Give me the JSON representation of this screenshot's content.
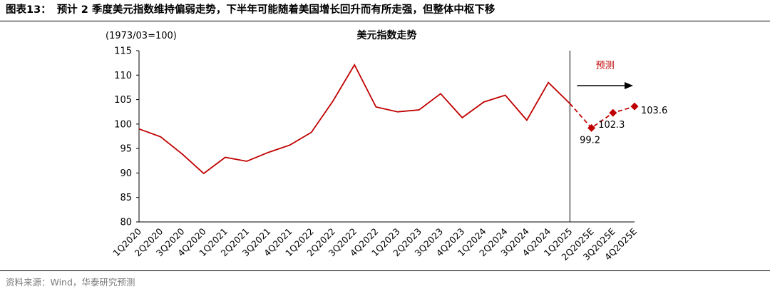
{
  "header": {
    "figure_label": "图表13：",
    "title": "预计 2 季度美元指数维持偏弱走势，下半年可能随着美国增长回升而有所走强，但整体中枢下移"
  },
  "chart_data": {
    "type": "line",
    "title": "美元指数走势",
    "axis_note": "(1973/03=100)",
    "ylim": [
      80,
      115
    ],
    "ytick_step": 5,
    "grid": false,
    "legend": "none",
    "categories": [
      "1Q2020",
      "2Q2020",
      "3Q2020",
      "4Q2020",
      "1Q2021",
      "2Q2021",
      "3Q2021",
      "4Q2021",
      "1Q2022",
      "2Q2022",
      "3Q2022",
      "4Q2022",
      "1Q2023",
      "2Q2023",
      "3Q2023",
      "4Q2023",
      "1Q2024",
      "2Q2024",
      "3Q2024",
      "4Q2024",
      "1Q2025",
      "2Q2025E",
      "3Q2025E",
      "4Q2025E"
    ],
    "series": [
      {
        "name": "美元指数-历史",
        "style": "solid",
        "color": "#C00000",
        "start_index": 0,
        "values": [
          99.0,
          97.4,
          93.9,
          89.9,
          93.2,
          92.4,
          94.2,
          95.7,
          98.3,
          104.7,
          112.1,
          103.5,
          102.5,
          102.9,
          106.2,
          101.3,
          104.5,
          105.9,
          100.8,
          108.5,
          104.2
        ]
      },
      {
        "name": "美元指数-预测",
        "style": "dashed",
        "color": "#C00000",
        "marker": "diamond",
        "marker_from": 1,
        "start_index": 20,
        "values": [
          104.2,
          99.2,
          102.3,
          103.6
        ]
      }
    ],
    "divider_index": 20,
    "forecast": {
      "label": "预测",
      "color": "#C00000"
    },
    "point_labels": [
      {
        "index": 21,
        "value": 99.2,
        "text": "99.2",
        "position": "below"
      },
      {
        "index": 22,
        "value": 102.3,
        "text": "102.3",
        "position": "below"
      },
      {
        "index": 23,
        "value": 103.6,
        "text": "103.6",
        "position": "right"
      }
    ]
  },
  "footer": {
    "source": "资料来源：Wind，华泰研究预测"
  }
}
